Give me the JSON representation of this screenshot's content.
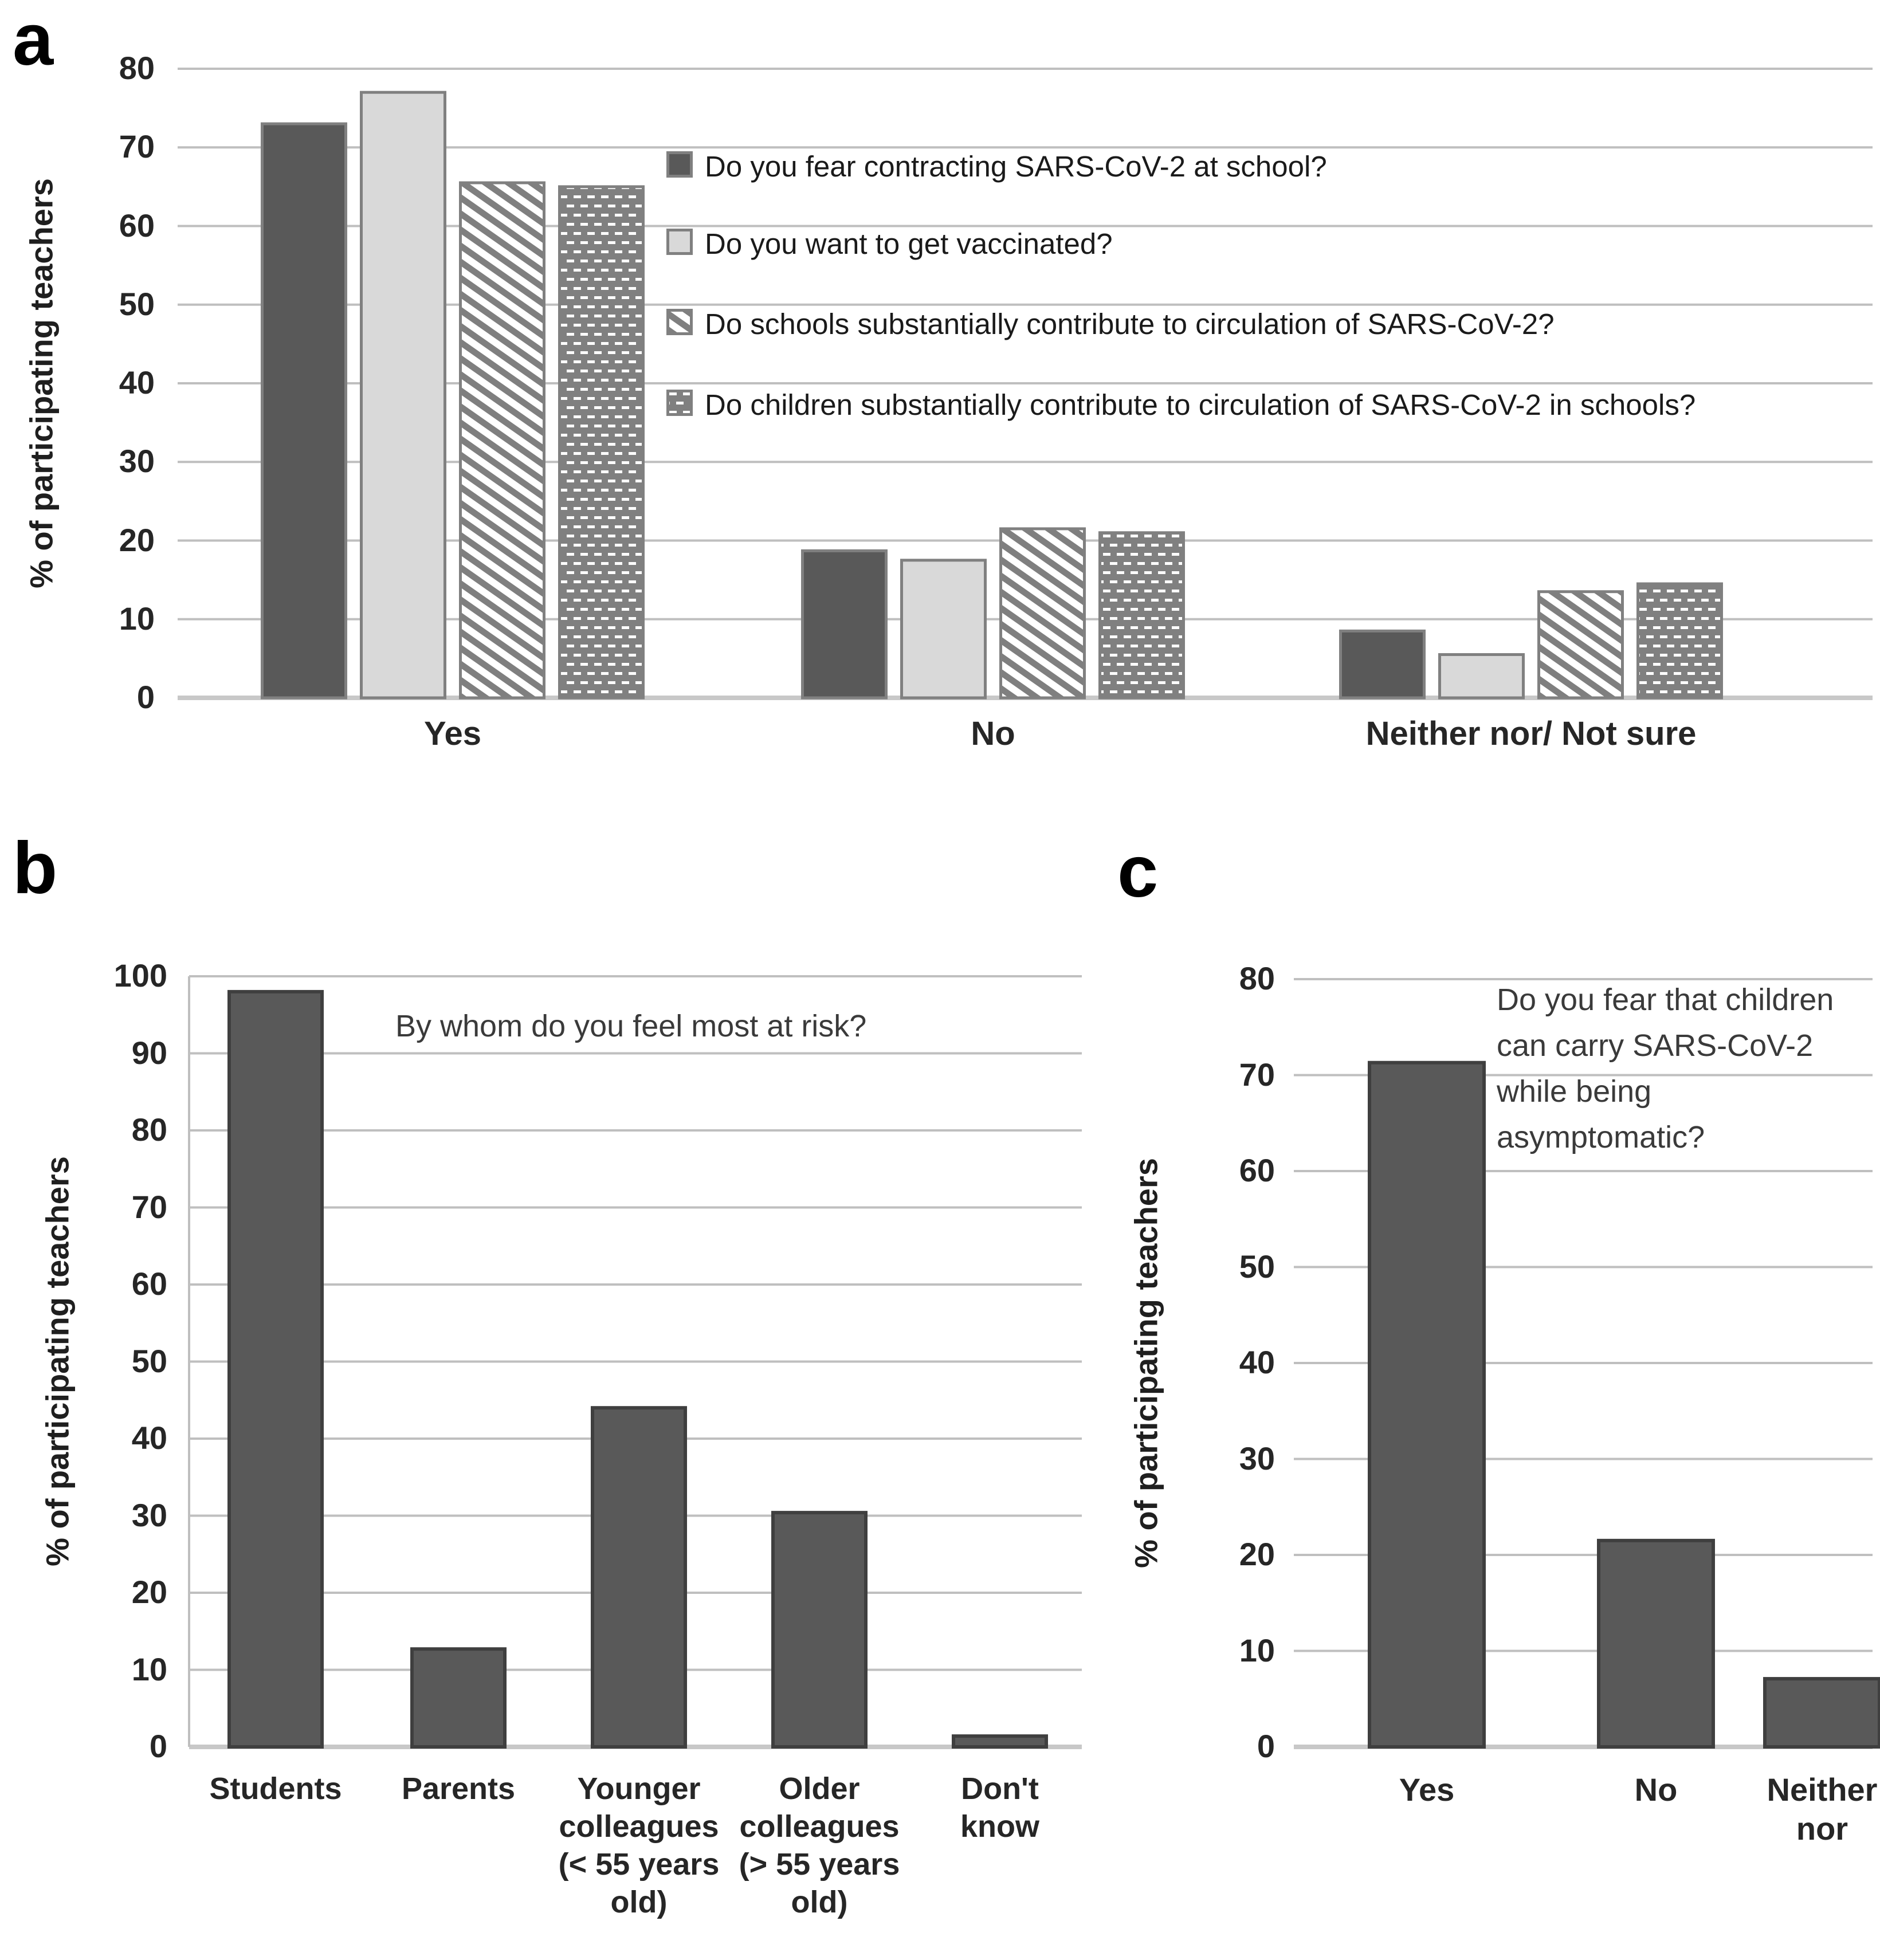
{
  "figure": {
    "panel_letters": {
      "a": "a",
      "b": "b",
      "c": "c"
    }
  },
  "colors": {
    "bar_dark": "#595959",
    "bar_light": "#d9d9d9",
    "pattern_gray": "#7f7f7f",
    "bar_outline_gray": "#808080",
    "bar_outline_dark": "#3f3f3f",
    "gridline": "#bfbfbf",
    "baseline": "#c8c8c8",
    "text": "#262626",
    "annotation_text": "#3a3a3a"
  },
  "chart_data": [
    {
      "id": "a",
      "type": "bar",
      "grouped": true,
      "ylabel": "% of participating teachers",
      "ylim": [
        0,
        80
      ],
      "ytick_step": 10,
      "grid": true,
      "legend_position": "inside-top-right",
      "categories": [
        "Yes",
        "No",
        "Neither nor/ Not sure"
      ],
      "category_label_lines": [
        [
          "Yes"
        ],
        [
          "No"
        ],
        [
          "Neither nor/ Not sure"
        ]
      ],
      "series": [
        {
          "name": "Do you fear contracting SARS-CoV-2 at school?",
          "style": "solid-dark",
          "values": [
            73,
            18.7,
            8.5
          ]
        },
        {
          "name": "Do you want to get vaccinated?",
          "style": "solid-light",
          "values": [
            77,
            17.5,
            5.5
          ]
        },
        {
          "name": "Do schools substantially contribute to circulation of SARS-CoV-2?",
          "style": "diagonal-stripe",
          "values": [
            65.5,
            21.5,
            13.5
          ]
        },
        {
          "name": "Do children substantially contribute to circulation of SARS-CoV-2 in schools?",
          "style": "dashed-grid",
          "values": [
            65,
            21,
            14.5
          ]
        }
      ]
    },
    {
      "id": "b",
      "type": "bar",
      "grouped": false,
      "ylabel": "% of participating teachers",
      "ylim": [
        0,
        100
      ],
      "ytick_step": 10,
      "grid": true,
      "annotation": "By whom do you feel most at risk?",
      "annotation_lines": [
        "By whom do you feel most at risk?"
      ],
      "categories": [
        "Students",
        "Parents",
        "Younger colleagues (< 55 years old)",
        "Older colleagues (> 55 years old)",
        "Don't know"
      ],
      "category_label_lines": [
        [
          "Students"
        ],
        [
          "Parents"
        ],
        [
          "Younger",
          "colleagues",
          "(< 55 years",
          "old)"
        ],
        [
          "Older",
          "colleagues",
          "(> 55 years",
          "old)"
        ],
        [
          "Don't",
          "know"
        ]
      ],
      "values": [
        98,
        12.7,
        44,
        30.4,
        1.4
      ]
    },
    {
      "id": "c",
      "type": "bar",
      "grouped": false,
      "ylabel": "% of participating teachers",
      "ylim": [
        0,
        80
      ],
      "ytick_step": 10,
      "grid": true,
      "annotation": "Do you fear that children can carry SARS-CoV-2 while being asymptomatic?",
      "annotation_lines": [
        "Do you fear that children",
        "can carry SARS-CoV-2",
        "while being",
        "asymptomatic?"
      ],
      "categories": [
        "Yes",
        "No",
        "Neither nor"
      ],
      "category_label_lines": [
        [
          "Yes"
        ],
        [
          "No"
        ],
        [
          "Neither",
          "nor"
        ]
      ],
      "values": [
        71.3,
        21.5,
        7.1
      ]
    }
  ]
}
